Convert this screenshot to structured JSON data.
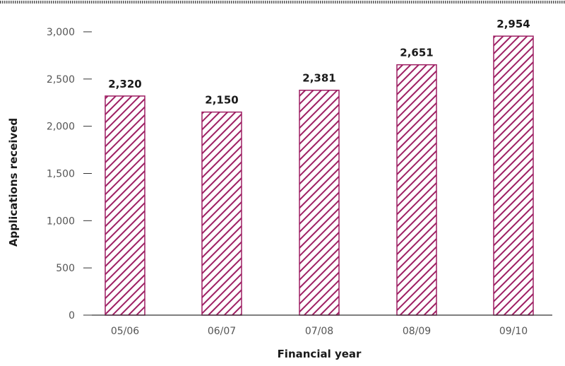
{
  "chart_data": {
    "type": "bar",
    "categories": [
      "05/06",
      "06/07",
      "07/08",
      "08/09",
      "09/10"
    ],
    "values": [
      2320,
      2150,
      2381,
      2651,
      2954
    ],
    "data_labels": [
      "2,320",
      "2,150",
      "2,381",
      "2,651",
      "2,954"
    ],
    "y_ticks": [
      0,
      500,
      1000,
      1500,
      2000,
      2500,
      3000
    ],
    "y_tick_labels": [
      "0",
      "500",
      "1,000",
      "1,500",
      "2,000",
      "2,500",
      "3,000"
    ],
    "ylim": [
      0,
      3000
    ],
    "xlabel": "Financial year",
    "ylabel": "Applications received",
    "grid": false,
    "legend": "none",
    "colors": {
      "bar_stroke": "#9e1f63",
      "hatch": "#9e1f63",
      "axis": "#333333",
      "top_border": "#555555"
    }
  }
}
